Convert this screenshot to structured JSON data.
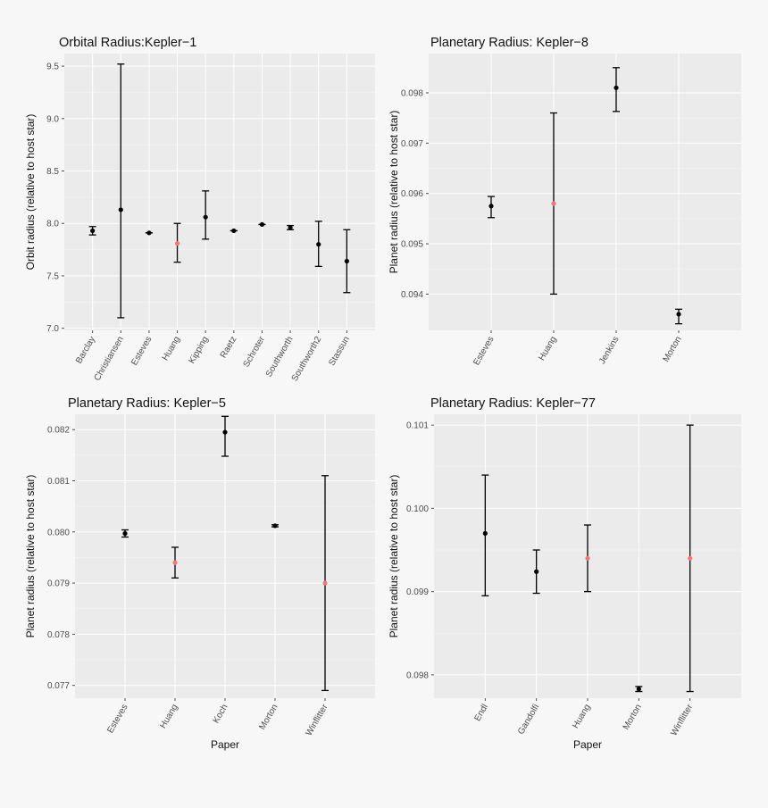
{
  "colors": {
    "normal": "#000000",
    "highlight": "#f8766d"
  },
  "chart_data": [
    {
      "type": "errorbar",
      "title": "Orbital Radius:Kepler−1",
      "xlabel": "",
      "ylabel": "Orbit radius (relative to host star)",
      "ylim": [
        6.98,
        9.62
      ],
      "yticks": [
        7.0,
        7.5,
        8.0,
        8.5,
        9.0,
        9.5
      ],
      "ytick_labels": [
        "7.0",
        "7.5",
        "8.0",
        "8.5",
        "9.0",
        "9.5"
      ],
      "categories": [
        "Barclay",
        "Christiansen",
        "Esteves",
        "Huang",
        "Kipping",
        "Raetz",
        "Schroter",
        "Southworth",
        "Southworth2",
        "Stassun"
      ],
      "values": [
        7.93,
        8.13,
        7.91,
        7.81,
        8.06,
        7.93,
        7.99,
        7.96,
        7.8,
        7.64
      ],
      "lower": [
        7.89,
        7.1,
        7.91,
        7.63,
        7.85,
        7.93,
        7.99,
        7.94,
        7.59,
        7.34
      ],
      "upper": [
        7.97,
        9.52,
        7.91,
        8.0,
        8.31,
        7.93,
        7.99,
        7.98,
        8.02,
        7.94
      ],
      "highlight": [
        false,
        false,
        false,
        true,
        false,
        false,
        false,
        false,
        false,
        false
      ]
    },
    {
      "type": "errorbar",
      "title": "Planetary Radius: Kepler−8",
      "xlabel": "",
      "ylabel": "Planet radius (relative to host star)",
      "ylim": [
        0.09328,
        0.09878
      ],
      "yticks": [
        0.094,
        0.095,
        0.096,
        0.097,
        0.098
      ],
      "ytick_labels": [
        "0.094",
        "0.095",
        "0.096",
        "0.097",
        "0.098"
      ],
      "categories": [
        "Esteves",
        "Huang",
        "Jenkins",
        "Morton"
      ],
      "values": [
        0.09575,
        0.0958,
        0.0981,
        0.0936
      ],
      "lower": [
        0.09552,
        0.094,
        0.09763,
        0.09341
      ],
      "upper": [
        0.09594,
        0.0976,
        0.0985,
        0.0937
      ],
      "highlight": [
        false,
        true,
        false,
        false
      ]
    },
    {
      "type": "errorbar",
      "title": "Planetary Radius: Kepler−5",
      "xlabel": "Paper",
      "ylabel": "Planet radius (relative to host star)",
      "ylim": [
        0.07675,
        0.0823
      ],
      "yticks": [
        0.077,
        0.078,
        0.079,
        0.08,
        0.081,
        0.082
      ],
      "ytick_labels": [
        "0.077",
        "0.078",
        "0.079",
        "0.080",
        "0.081",
        "0.082"
      ],
      "categories": [
        "Esteves",
        "Huang",
        "Koch",
        "Morton",
        "Winflitter"
      ],
      "values": [
        0.07997,
        0.0794,
        0.08195,
        0.08012,
        0.079
      ],
      "lower": [
        0.0799,
        0.0791,
        0.08148,
        0.0801,
        0.0769
      ],
      "upper": [
        0.08004,
        0.0797,
        0.08226,
        0.08014,
        0.0811
      ],
      "highlight": [
        false,
        true,
        false,
        false,
        true
      ]
    },
    {
      "type": "errorbar",
      "title": "Planetary Radius: Kepler−77",
      "xlabel": "Paper",
      "ylabel": "Planet radius (relative to host star)",
      "ylim": [
        0.09772,
        0.10113
      ],
      "yticks": [
        0.098,
        0.099,
        0.1,
        0.101
      ],
      "ytick_labels": [
        "0.098",
        "0.099",
        "0.100",
        "0.101"
      ],
      "categories": [
        "Endl",
        "Gandolfi",
        "Huang",
        "Morton",
        "Winflitter"
      ],
      "values": [
        0.0997,
        0.09924,
        0.0994,
        0.09783,
        0.0994
      ],
      "lower": [
        0.09895,
        0.09898,
        0.099,
        0.0978,
        0.0978
      ],
      "upper": [
        0.1004,
        0.0995,
        0.0998,
        0.09786,
        0.101
      ],
      "highlight": [
        false,
        false,
        true,
        false,
        true
      ]
    }
  ]
}
